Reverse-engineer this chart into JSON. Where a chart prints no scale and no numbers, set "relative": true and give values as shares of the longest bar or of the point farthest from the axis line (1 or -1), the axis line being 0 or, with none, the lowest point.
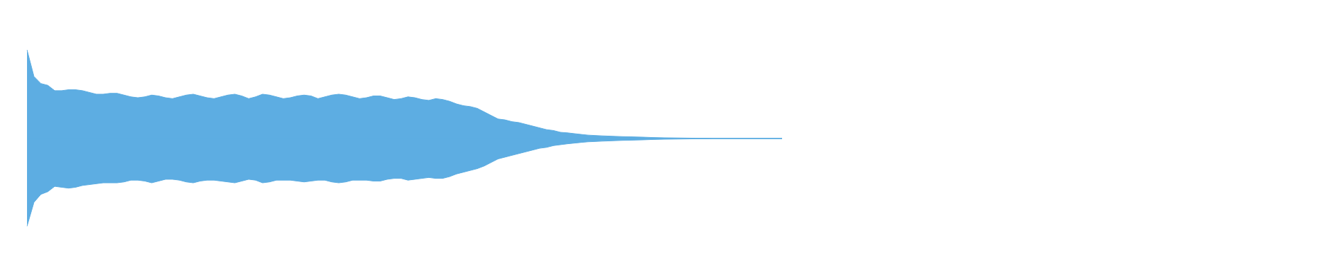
{
  "chart_data": {
    "type": "area",
    "relative": true,
    "ref_lines": [
      {
        "axis": "y",
        "value": 0,
        "color": "#5dade2"
      }
    ],
    "categories": [
      null,
      null,
      null,
      null,
      null,
      null,
      null,
      null,
      null,
      null,
      null,
      null,
      null,
      null,
      null,
      null,
      null,
      null,
      null,
      null,
      null,
      null,
      null,
      null,
      null,
      null,
      null,
      null,
      null,
      null,
      null,
      null,
      null,
      null,
      null,
      null,
      null,
      null,
      null,
      null,
      null,
      null,
      null,
      null,
      null,
      null,
      null,
      null,
      null,
      null,
      null,
      null,
      null,
      null,
      null,
      null,
      null,
      null,
      null,
      null,
      null,
      null,
      null,
      null,
      null,
      null,
      null,
      null,
      null,
      null,
      null,
      null,
      null,
      null,
      null,
      null,
      null,
      null,
      null,
      null,
      null,
      null,
      null,
      null,
      null,
      null,
      null,
      null,
      null,
      null,
      null,
      null,
      null,
      null,
      null,
      null,
      null,
      null,
      null,
      null,
      null,
      null,
      null,
      null,
      null,
      null,
      null,
      null,
      null,
      null
    ],
    "series": [
      {
        "color": "#5dade2",
        "values": [
          1.0,
          0.7,
          0.62,
          0.6,
          0.54,
          0.54,
          0.55,
          0.55,
          0.54,
          0.52,
          0.5,
          0.5,
          0.51,
          0.51,
          0.49,
          0.47,
          0.46,
          0.47,
          0.49,
          0.48,
          0.46,
          0.45,
          0.47,
          0.49,
          0.5,
          0.48,
          0.46,
          0.45,
          0.47,
          0.49,
          0.5,
          0.48,
          0.45,
          0.47,
          0.5,
          0.49,
          0.47,
          0.45,
          0.46,
          0.48,
          0.49,
          0.48,
          0.45,
          0.47,
          0.49,
          0.5,
          0.49,
          0.47,
          0.45,
          0.46,
          0.48,
          0.48,
          0.46,
          0.44,
          0.45,
          0.47,
          0.46,
          0.44,
          0.43,
          0.45,
          0.44,
          0.42,
          0.39,
          0.37,
          0.36,
          0.34,
          0.3,
          0.26,
          0.22,
          0.21,
          0.19,
          0.18,
          0.16,
          0.14,
          0.12,
          0.1,
          0.09,
          0.07,
          0.064,
          0.055,
          0.046,
          0.038,
          0.034,
          0.03,
          0.027,
          0.024,
          0.021,
          0.02,
          0.017,
          0.015,
          0.012,
          0.01,
          0.008,
          0.007,
          0.006,
          0.005,
          0.004,
          0.003,
          0.003,
          0.002,
          0.002,
          0.002,
          0.002,
          0.002,
          0.002,
          0.002,
          0.002,
          0.002,
          0.002,
          0.002
        ]
      },
      {
        "color": "#5dade2",
        "values": [
          -0.99,
          -0.72,
          -0.63,
          -0.6,
          -0.54,
          -0.55,
          -0.56,
          -0.55,
          -0.53,
          -0.52,
          -0.51,
          -0.5,
          -0.5,
          -0.5,
          -0.49,
          -0.47,
          -0.47,
          -0.48,
          -0.5,
          -0.48,
          -0.46,
          -0.46,
          -0.47,
          -0.49,
          -0.5,
          -0.48,
          -0.47,
          -0.47,
          -0.48,
          -0.49,
          -0.5,
          -0.48,
          -0.46,
          -0.47,
          -0.5,
          -0.49,
          -0.47,
          -0.47,
          -0.47,
          -0.48,
          -0.49,
          -0.48,
          -0.47,
          -0.47,
          -0.49,
          -0.5,
          -0.49,
          -0.47,
          -0.47,
          -0.47,
          -0.48,
          -0.48,
          -0.46,
          -0.45,
          -0.45,
          -0.47,
          -0.46,
          -0.45,
          -0.44,
          -0.45,
          -0.45,
          -0.43,
          -0.4,
          -0.38,
          -0.36,
          -0.34,
          -0.31,
          -0.27,
          -0.23,
          -0.21,
          -0.19,
          -0.17,
          -0.15,
          -0.13,
          -0.11,
          -0.1,
          -0.08,
          -0.07,
          -0.06,
          -0.052,
          -0.044,
          -0.037,
          -0.034,
          -0.03,
          -0.027,
          -0.024,
          -0.021,
          -0.02,
          -0.017,
          -0.015,
          -0.012,
          -0.01,
          -0.008,
          -0.007,
          -0.006,
          -0.005,
          -0.004,
          -0.003,
          -0.003,
          -0.002,
          -0.002,
          -0.002,
          -0.002,
          -0.002,
          -0.002,
          -0.002,
          -0.002,
          -0.002,
          -0.002,
          -0.002
        ]
      }
    ]
  }
}
